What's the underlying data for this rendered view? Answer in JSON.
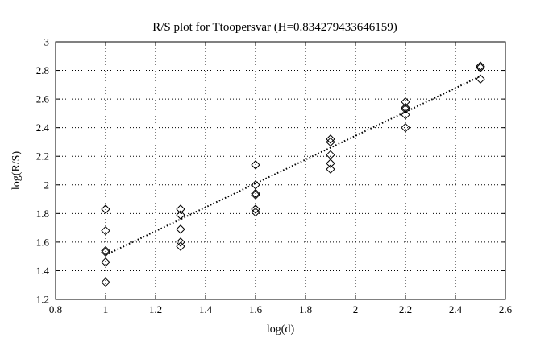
{
  "chart_data": {
    "type": "scatter",
    "title": "R/S plot for Ttoopersvar (H=0.834279433646159)",
    "xlabel": "log(d)",
    "ylabel": "log(R/S)",
    "xlim": [
      0.8,
      2.6
    ],
    "ylim": [
      1.2,
      3.0
    ],
    "xticks": [
      "0.8",
      "1",
      "1.2",
      "1.4",
      "1.6",
      "1.8",
      "2",
      "2.2",
      "2.4",
      "2.6"
    ],
    "yticks": [
      "1.2",
      "1.4",
      "1.6",
      "1.8",
      "2",
      "2.2",
      "2.4",
      "2.6",
      "2.8",
      "3"
    ],
    "grid": true,
    "marker": "diamond",
    "series": [
      {
        "points": [
          [
            1.0,
            1.83
          ],
          [
            1.0,
            1.68
          ],
          [
            1.0,
            1.54
          ],
          [
            1.0,
            1.53
          ],
          [
            1.0,
            1.46
          ],
          [
            1.0,
            1.32
          ],
          [
            1.3,
            1.83
          ],
          [
            1.3,
            1.79
          ],
          [
            1.3,
            1.69
          ],
          [
            1.3,
            1.6
          ],
          [
            1.3,
            1.57
          ],
          [
            1.6,
            2.14
          ],
          [
            1.6,
            2.0
          ],
          [
            1.6,
            1.94
          ],
          [
            1.6,
            1.93
          ],
          [
            1.6,
            1.83
          ],
          [
            1.6,
            1.81
          ],
          [
            1.9,
            2.32
          ],
          [
            1.9,
            2.3
          ],
          [
            1.9,
            2.21
          ],
          [
            1.9,
            2.15
          ],
          [
            1.9,
            2.11
          ],
          [
            2.2,
            2.58
          ],
          [
            2.2,
            2.54
          ],
          [
            2.2,
            2.53
          ],
          [
            2.2,
            2.49
          ],
          [
            2.2,
            2.4
          ],
          [
            2.5,
            2.83
          ],
          [
            2.5,
            2.82
          ],
          [
            2.5,
            2.74
          ]
        ]
      }
    ],
    "fit_line": {
      "style": "dotted",
      "x": [
        1.0,
        2.5
      ],
      "y": [
        1.51,
        2.76
      ]
    }
  }
}
